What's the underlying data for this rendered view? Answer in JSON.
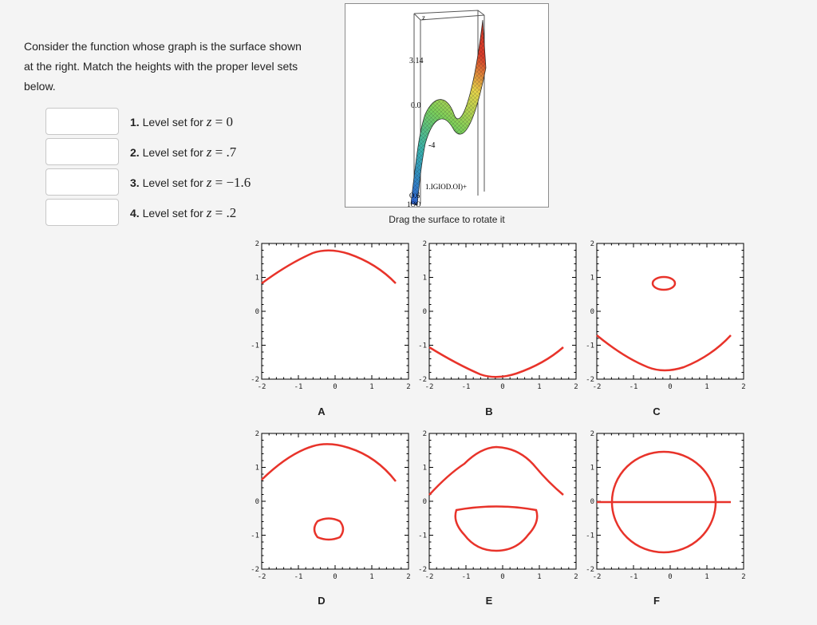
{
  "intro_text": "Consider the function whose graph is the surface shown at the right. Match the heights with the proper level sets below.",
  "questions": [
    {
      "number": "1.",
      "text": "Level set for",
      "var": "z",
      "value": "0",
      "answer": ""
    },
    {
      "number": "2.",
      "text": "Level set for",
      "var": "z",
      "value": ".7",
      "answer": ""
    },
    {
      "number": "3.",
      "text": "Level set for",
      "var": "z",
      "value": "−1.6",
      "answer": ""
    },
    {
      "number": "4.",
      "text": "Level set for",
      "var": "z",
      "value": ".2",
      "answer": ""
    }
  ],
  "surface": {
    "caption": "Drag the surface to rotate it",
    "axis_label": "z",
    "tick_labels": [
      "3.14",
      "0.0",
      "-4",
      "1.IGIOD.OI)+",
      "O.6",
      "1OO"
    ]
  },
  "plots": {
    "axis_ticks": [
      "-2",
      "-1",
      "0",
      "1",
      "2"
    ],
    "letters": [
      "A",
      "B",
      "C",
      "D",
      "E",
      "F"
    ]
  },
  "colors": {
    "curve": "#e8332a",
    "frame": "#000000",
    "background": "#f4f4f4"
  }
}
